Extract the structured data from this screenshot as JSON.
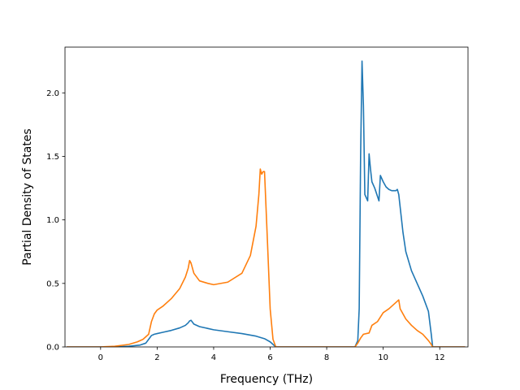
{
  "chart_data": {
    "type": "line",
    "title": "",
    "xlabel": "Frequency (THz)",
    "ylabel": "Partial Density of States",
    "xlim": [
      -1.26,
      13.0
    ],
    "ylim": [
      0.0,
      2.36
    ],
    "xticks": [
      0,
      2,
      4,
      6,
      8,
      10,
      12
    ],
    "yticks": [
      0.0,
      0.5,
      1.0,
      1.5,
      2.0
    ],
    "xtick_labels": [
      "0",
      "2",
      "4",
      "6",
      "8",
      "10",
      "12"
    ],
    "ytick_labels": [
      "0.0",
      "0.5",
      "1.0",
      "1.5",
      "2.0"
    ],
    "grid": false,
    "colors": [
      "#1f77b4",
      "#ff7f0e"
    ],
    "series": [
      {
        "x": [
          -1.2,
          0.0,
          0.5,
          1.0,
          1.4,
          1.6,
          1.7,
          1.8,
          1.9,
          2.0,
          2.2,
          2.5,
          2.8,
          3.0,
          3.1,
          3.15,
          3.2,
          3.3,
          3.5,
          4.0,
          4.5,
          5.0,
          5.5,
          5.8,
          6.0,
          6.1,
          6.2,
          7.0,
          8.0,
          9.0,
          9.1,
          9.15,
          9.2,
          9.25,
          9.3,
          9.35,
          9.45,
          9.5,
          9.55,
          9.6,
          9.7,
          9.85,
          9.9,
          10.0,
          10.1,
          10.2,
          10.3,
          10.45,
          10.5,
          10.55,
          10.7,
          10.8,
          11.0,
          11.2,
          11.4,
          11.6,
          11.7,
          11.75,
          12.0,
          12.9
        ],
        "y": [
          0.0,
          0.0,
          0.0,
          0.005,
          0.015,
          0.03,
          0.06,
          0.09,
          0.1,
          0.105,
          0.115,
          0.13,
          0.15,
          0.17,
          0.19,
          0.205,
          0.21,
          0.18,
          0.16,
          0.135,
          0.12,
          0.105,
          0.085,
          0.065,
          0.04,
          0.02,
          0.0,
          0.0,
          0.0,
          0.0,
          0.05,
          0.3,
          1.5,
          2.25,
          1.9,
          1.2,
          1.15,
          1.52,
          1.4,
          1.3,
          1.25,
          1.15,
          1.35,
          1.3,
          1.26,
          1.24,
          1.23,
          1.23,
          1.24,
          1.2,
          0.9,
          0.75,
          0.6,
          0.5,
          0.4,
          0.28,
          0.1,
          0.0,
          0.0,
          0.0
        ]
      },
      {
        "x": [
          -1.2,
          0.0,
          0.5,
          1.0,
          1.3,
          1.5,
          1.7,
          1.8,
          1.9,
          2.0,
          2.2,
          2.5,
          2.8,
          3.0,
          3.1,
          3.15,
          3.2,
          3.3,
          3.5,
          3.8,
          4.0,
          4.5,
          5.0,
          5.3,
          5.5,
          5.6,
          5.65,
          5.7,
          5.75,
          5.8,
          5.9,
          6.0,
          6.1,
          6.2,
          7.0,
          8.0,
          9.0,
          9.1,
          9.2,
          9.3,
          9.5,
          9.6,
          9.8,
          10.0,
          10.2,
          10.4,
          10.5,
          10.55,
          10.6,
          10.8,
          11.0,
          11.2,
          11.4,
          11.6,
          11.7,
          11.75,
          12.0,
          12.9
        ],
        "y": [
          0.0,
          0.0,
          0.005,
          0.02,
          0.04,
          0.06,
          0.1,
          0.2,
          0.26,
          0.29,
          0.32,
          0.38,
          0.46,
          0.55,
          0.62,
          0.68,
          0.66,
          0.58,
          0.52,
          0.5,
          0.49,
          0.51,
          0.58,
          0.72,
          0.95,
          1.2,
          1.4,
          1.36,
          1.38,
          1.38,
          0.85,
          0.3,
          0.06,
          0.0,
          0.0,
          0.0,
          0.0,
          0.03,
          0.07,
          0.1,
          0.11,
          0.17,
          0.2,
          0.27,
          0.3,
          0.34,
          0.36,
          0.37,
          0.3,
          0.22,
          0.17,
          0.13,
          0.1,
          0.05,
          0.02,
          0.0,
          0.0,
          0.0
        ]
      }
    ]
  }
}
